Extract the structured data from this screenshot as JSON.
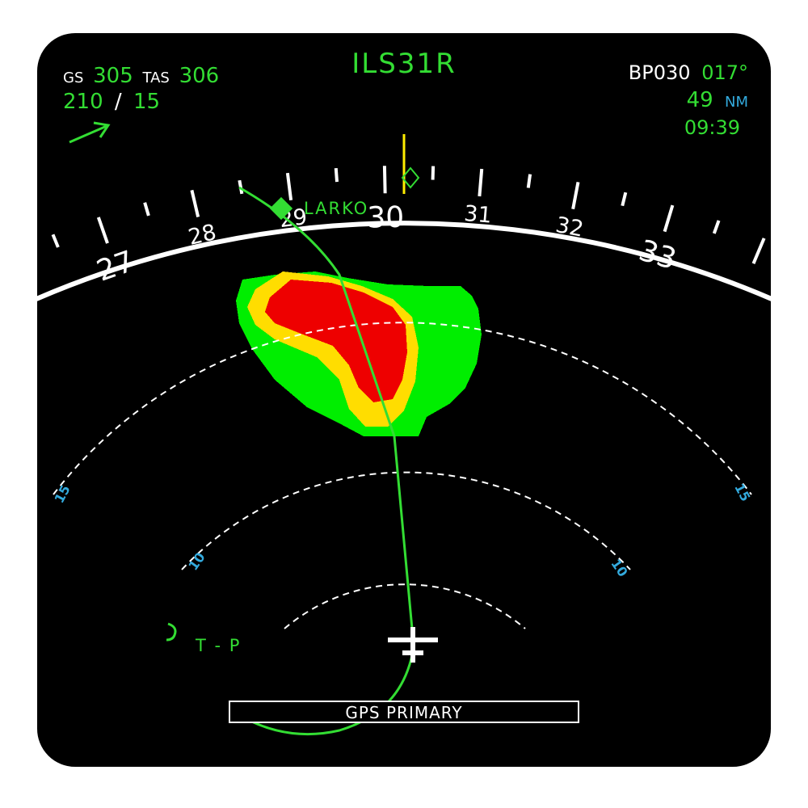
{
  "header": {
    "approach": "ILS31R",
    "gs_label": "GS",
    "gs_value": "305",
    "tas_label": "TAS",
    "tas_value": "306",
    "wind_dir": "210",
    "wind_sep": "/",
    "wind_speed": "15",
    "waypoint": "BP030",
    "bearing": "017°",
    "distance": "49",
    "distance_unit": "NM",
    "eta": "09:39"
  },
  "compass": {
    "labels": [
      "27",
      "28",
      "29",
      "30",
      "31",
      "32",
      "33"
    ]
  },
  "range_rings": {
    "outer_left": "15",
    "outer_right": "15",
    "mid_left": "10",
    "mid_right": "10"
  },
  "waypoints": {
    "larko": "LARKO",
    "tp": "T - P"
  },
  "status": {
    "nav_mode": "GPS PRIMARY"
  },
  "colors": {
    "background": "#000000",
    "frame": "#ffffff",
    "green": "#33dd33",
    "cyan": "#33aadd",
    "yellow": "#ffee00",
    "wx_green": "#00ee00",
    "wx_yellow": "#ffdd00",
    "wx_red": "#ee0000"
  },
  "icons": {
    "wind_arrow": "wind-arrow-icon",
    "aircraft": "aircraft-symbol-icon",
    "heading_bug": "heading-bug-icon",
    "waypoint": "waypoint-diamond-icon"
  }
}
